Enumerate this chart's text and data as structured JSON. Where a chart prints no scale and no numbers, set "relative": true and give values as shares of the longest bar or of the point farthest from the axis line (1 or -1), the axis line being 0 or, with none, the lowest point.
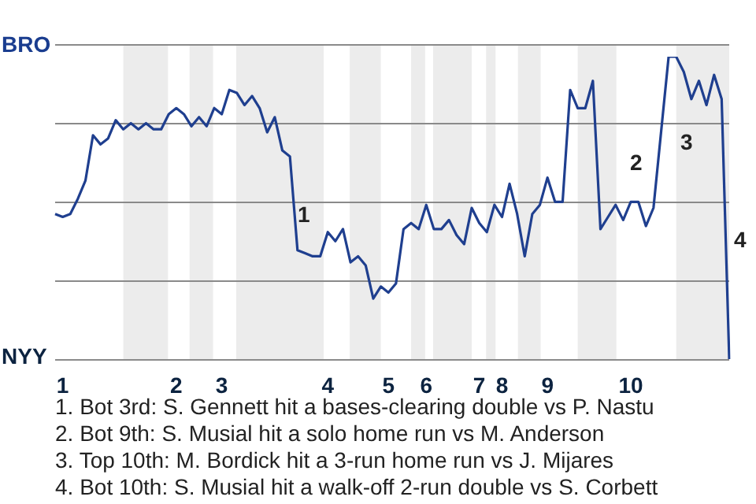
{
  "chart_data": {
    "type": "line",
    "color": "#1f3f8f",
    "marker": "none",
    "grid": "y",
    "legend": false,
    "relative": true,
    "categories": [
      null,
      "1",
      null,
      null,
      null,
      null,
      null,
      null,
      null,
      null,
      null,
      null,
      null,
      null,
      null,
      null,
      "2",
      null,
      null,
      null,
      null,
      null,
      "3",
      null,
      null,
      null,
      null,
      null,
      null,
      null,
      null,
      null,
      null,
      null,
      null,
      null,
      "4",
      null,
      null,
      null,
      null,
      null,
      null,
      null,
      "5",
      null,
      null,
      null,
      null,
      "6",
      null,
      null,
      null,
      null,
      null,
      null,
      "7",
      null,
      null,
      "8",
      null,
      null,
      null,
      null,
      null,
      "9",
      null,
      null,
      null,
      null,
      null,
      null,
      null,
      null,
      null,
      null,
      "10",
      null,
      null,
      null,
      null,
      null,
      null,
      null,
      null,
      null,
      null,
      null,
      null,
      null
    ],
    "values": [
      0.48,
      0.47,
      0.48,
      0.53,
      0.59,
      0.74,
      0.71,
      0.73,
      0.79,
      0.76,
      0.78,
      0.76,
      0.78,
      0.76,
      0.76,
      0.81,
      0.83,
      0.81,
      0.77,
      0.8,
      0.77,
      0.83,
      0.81,
      0.89,
      0.88,
      0.84,
      0.87,
      0.83,
      0.75,
      0.8,
      0.69,
      0.67,
      0.36,
      0.35,
      0.34,
      0.34,
      0.42,
      0.39,
      0.43,
      0.32,
      0.34,
      0.31,
      0.2,
      0.24,
      0.22,
      0.25,
      0.43,
      0.45,
      0.43,
      0.51,
      0.43,
      0.43,
      0.46,
      0.41,
      0.38,
      0.5,
      0.45,
      0.42,
      0.51,
      0.47,
      0.58,
      0.48,
      0.34,
      0.48,
      0.51,
      0.6,
      0.52,
      0.52,
      0.89,
      0.83,
      0.83,
      0.92,
      0.43,
      0.47,
      0.51,
      0.46,
      0.52,
      0.52,
      0.44,
      0.5,
      0.75,
      1,
      1,
      0.95,
      0.86,
      0.92,
      0.84,
      0.94,
      0.86,
      0
    ],
    "annotations": [
      "BRO",
      "NYY",
      "1",
      "2",
      "3",
      "4",
      "1. Bot 3rd: S. Gennett hit a bases-clearing double vs P. Nastu",
      "2. Bot 9th: S. Musial hit a solo home run vs M. Anderson",
      "3. Top 10th: M. Bordick hit a 3-run home run vs J. Mijares",
      "4. Bot 10th: S. Musial hit a walk-off 2-run double vs S. Corbett"
    ]
  }
}
